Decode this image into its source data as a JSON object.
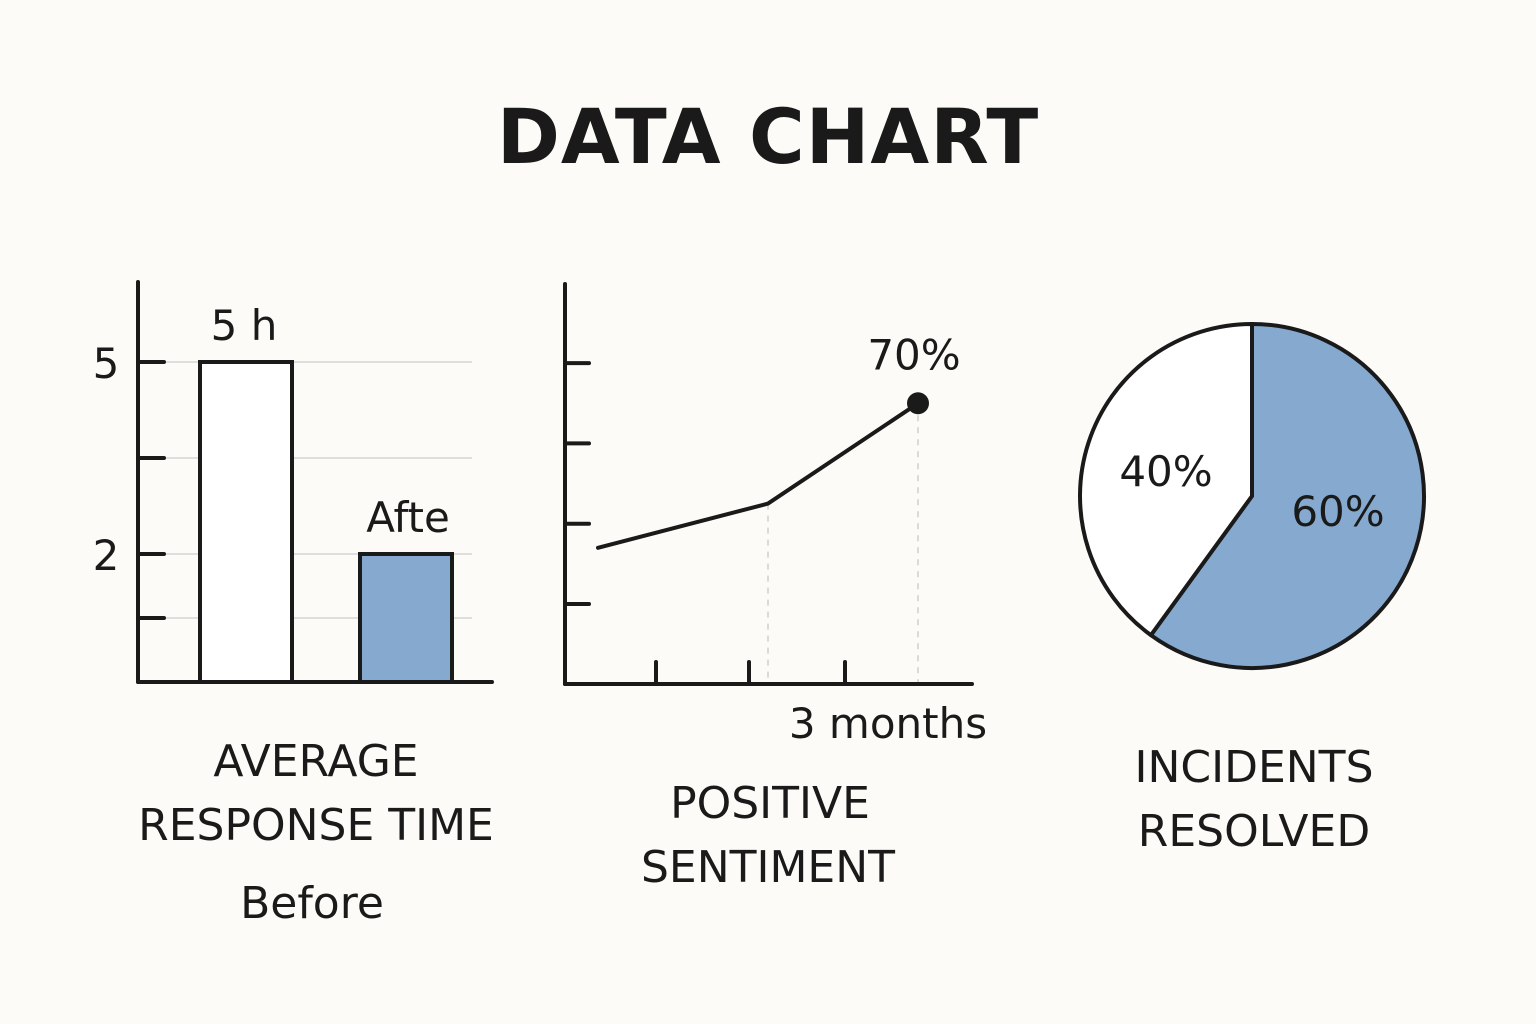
{
  "title": "DATA CHART",
  "colors": {
    "accent": "#86aacf",
    "ink": "#1a1a1a",
    "background": "#fcfbf7",
    "empty": "#ffffff"
  },
  "chart_data": [
    {
      "type": "bar",
      "categories": [
        "Before",
        "Afte"
      ],
      "values": [
        5,
        2
      ],
      "data_labels": [
        "5 h",
        "Afte"
      ],
      "y_tick_labels": [
        {
          "value": 5,
          "label": "5"
        },
        {
          "value": 2,
          "label": "2"
        }
      ],
      "y_ticks": [
        1,
        2,
        3.5,
        5
      ],
      "ylim": [
        0,
        6
      ],
      "caption_lines": [
        "AVERAGE",
        "RESPONSE TIME"
      ],
      "category_caption": "Before",
      "bar_fill_colors": [
        "#ffffff",
        "#86aacf"
      ],
      "grid": true
    },
    {
      "type": "line",
      "x": [
        0,
        1.7,
        3.2
      ],
      "values": [
        34,
        45,
        70
      ],
      "point_label": "70%",
      "x_axis_caption": "3 months",
      "xlim": [
        0,
        4
      ],
      "x_ticks": [
        1,
        1.7,
        2.7
      ],
      "ylim": [
        0,
        100
      ],
      "y_ticks": [
        20,
        40,
        60,
        80
      ],
      "caption_lines": [
        "POSITIVE",
        "SENTIMENT"
      ],
      "grid": false
    },
    {
      "type": "pie",
      "slices": [
        {
          "label": "60%",
          "value": 60,
          "color": "#86aacf"
        },
        {
          "label": "40%",
          "value": 40,
          "color": "#ffffff"
        }
      ],
      "caption_lines": [
        "INCIDENTS",
        "RESOLVED"
      ]
    }
  ]
}
